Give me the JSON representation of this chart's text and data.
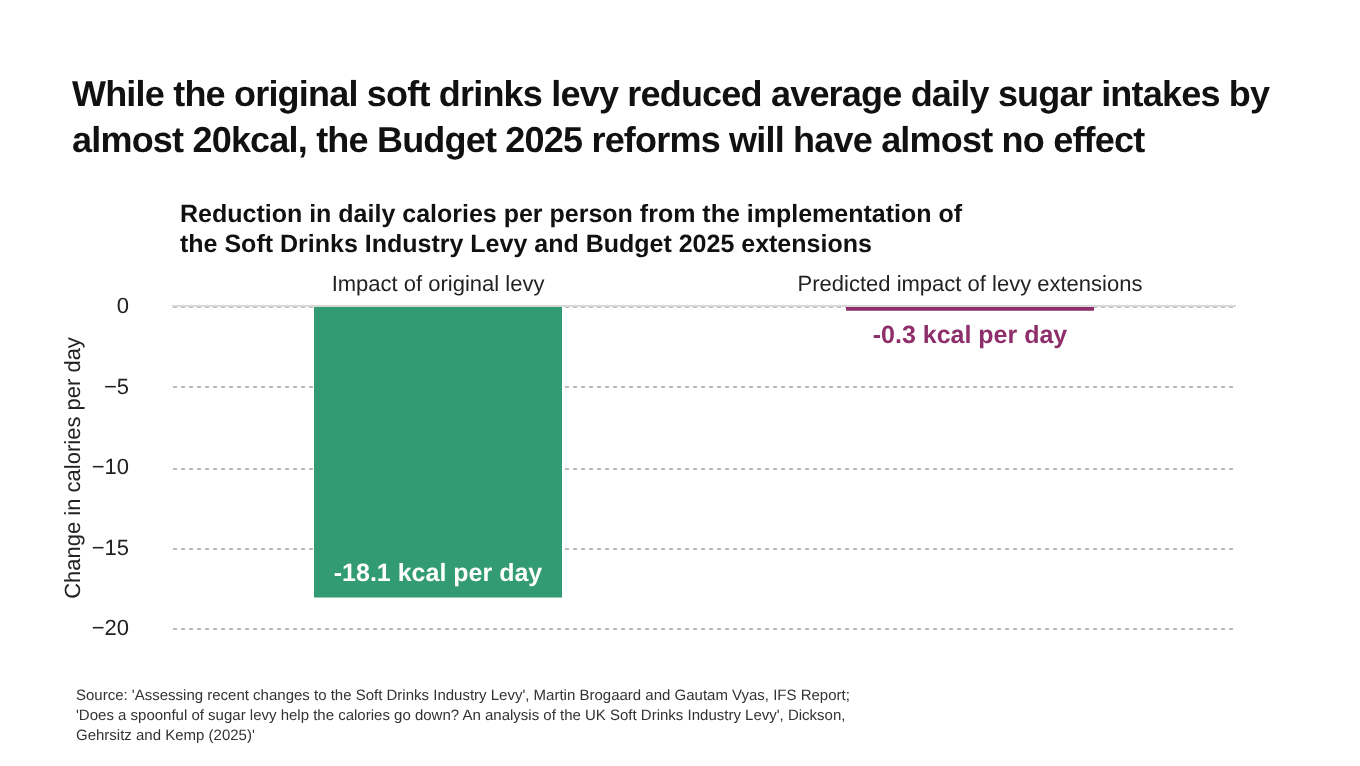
{
  "chart_data": {
    "type": "bar",
    "title": "While the original soft drinks levy reduced average daily sugar intakes by almost 20kcal, the Budget 2025 reforms will have almost no effect",
    "subtitle": "Reduction in daily calories per person from the implementation of the Soft Drinks Industry Levy and Budget 2025 extensions",
    "ylabel": "Change in calories per day",
    "categories": [
      "Impact of original levy",
      "Predicted impact of levy extensions"
    ],
    "values": [
      -18.1,
      -0.3
    ],
    "colors": [
      "#339b73",
      "#8e2f6b"
    ],
    "value_labels": [
      "-18.1 kcal per day",
      "-0.3 kcal per day"
    ],
    "ylim": [
      -20,
      0
    ],
    "yticks": [
      0,
      -5,
      -10,
      -15,
      -20
    ],
    "grid": "y",
    "annotations": [
      "Source: 'Assessing recent changes to the Soft Drinks Industry Levy', Martin Brogaard and Gautam Vyas, IFS Report; 'Does a spoonful of sugar levy help the calories go down? An analysis of the UK Soft Drinks Industry Levy', Dickson, Gehrsitz and Kemp (2025)'"
    ]
  }
}
